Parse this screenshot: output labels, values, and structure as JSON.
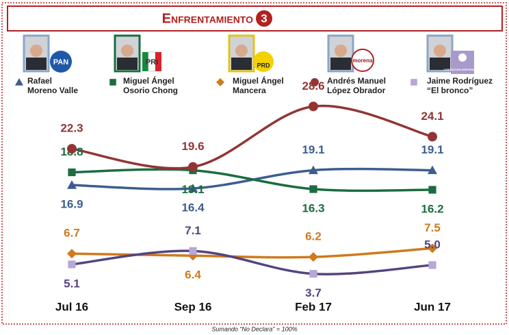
{
  "chart_data": {
    "type": "line",
    "title": "Enfrentamiento",
    "title_badge": "3",
    "categories": [
      "Jul 16",
      "Sep 16",
      "Feb 17",
      "Jun 17"
    ],
    "ylim": [
      0,
      32
    ],
    "note": "Sumando “No Declara” = 100%",
    "series": [
      {
        "name": "Rafael Moreno Valle",
        "logo": "PAN",
        "marker": "triangle",
        "color": "#3c5e8e",
        "values": [
          16.9,
          16.4,
          19.1,
          19.1
        ]
      },
      {
        "name": "Miguel Ángel Osorio Chong",
        "logo": "PRI",
        "marker": "square",
        "color": "#1b6d3f",
        "values": [
          18.8,
          19.1,
          16.3,
          16.2
        ]
      },
      {
        "name": "Miguel Ángel Mancera",
        "logo": "PRD",
        "marker": "diamond",
        "color": "#cf7a1c",
        "values": [
          6.7,
          6.4,
          6.2,
          7.5
        ]
      },
      {
        "name": "Andrés Manuel López Obrador",
        "logo": "morena",
        "marker": "circle",
        "color": "#933434",
        "values": [
          22.3,
          19.6,
          28.6,
          24.1
        ]
      },
      {
        "name": "Jaime Rodríguez “El bronco”",
        "logo": "CANDIDATURA INDEPENDIENTE",
        "marker": "square",
        "color": "#54447f",
        "marker_color": "#b8a7d6",
        "values": [
          5.1,
          7.1,
          3.7,
          5.0
        ],
        "value_labels": [
          "5.1",
          "7.1",
          "3.7",
          "5.0"
        ]
      }
    ]
  }
}
